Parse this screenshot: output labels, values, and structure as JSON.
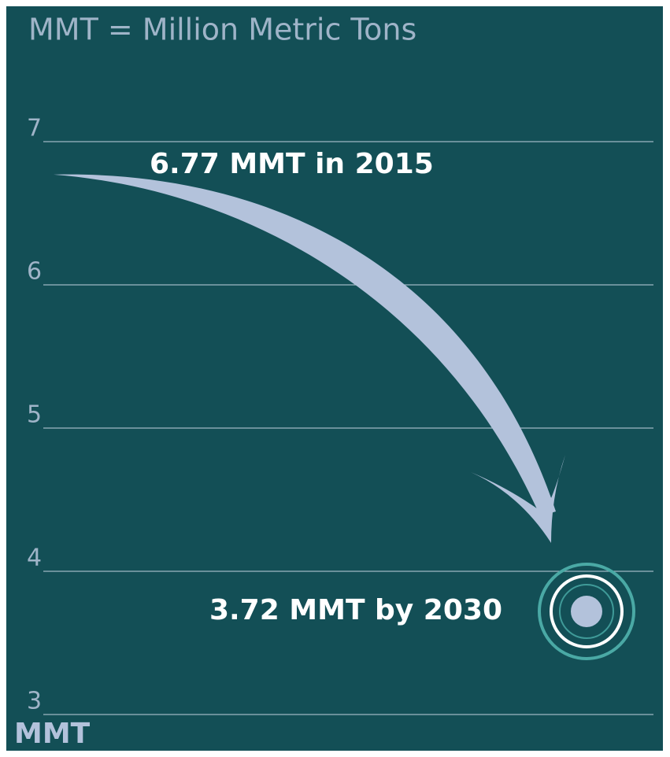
{
  "chart_data": {
    "type": "trajectory",
    "title": "MMT = Million Metric Tons",
    "y_label": "MMT",
    "ylim": [
      3,
      7
    ],
    "yticks": [
      7,
      6,
      5,
      4,
      3
    ],
    "grid": true,
    "color": "#b3c2db",
    "points": [
      {
        "label": "6.77 MMT in 2015",
        "value": 6.77
      },
      {
        "label": "3.72 MMT by 2030",
        "value": 3.72
      }
    ]
  }
}
